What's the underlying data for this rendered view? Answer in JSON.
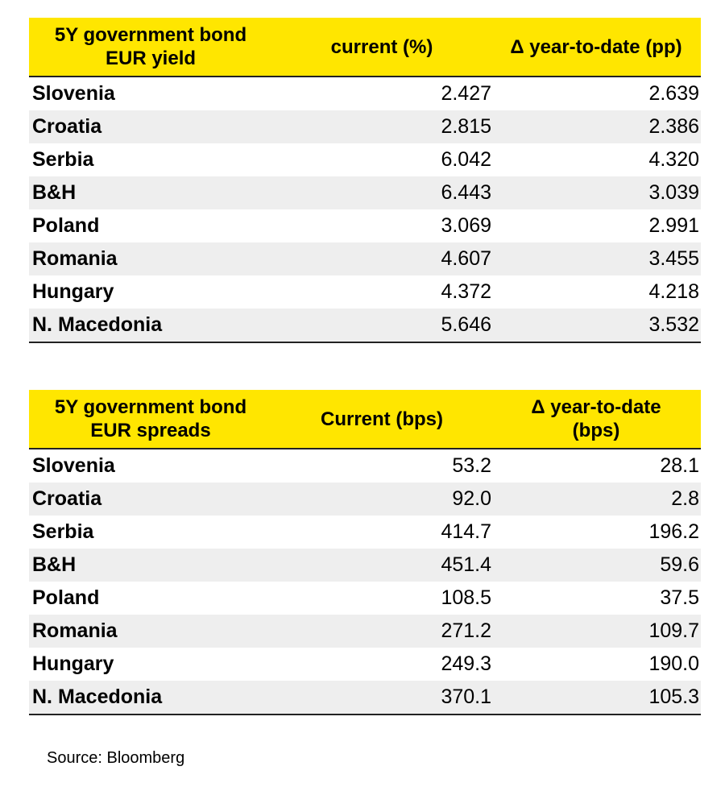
{
  "chart_data": [
    {
      "type": "table",
      "columns": [
        "5Y government bond EUR yield",
        "current (%)",
        "Δ year-to-date (pp)"
      ],
      "header_lines": [
        [
          "5Y government bond",
          "EUR yield"
        ],
        [
          "current (%)"
        ],
        [
          "Δ year-to-date (pp)"
        ]
      ],
      "rows": [
        [
          "Slovenia",
          "2.427",
          "2.639"
        ],
        [
          "Croatia",
          "2.815",
          "2.386"
        ],
        [
          "Serbia",
          "6.042",
          "4.320"
        ],
        [
          "B&H",
          "6.443",
          "3.039"
        ],
        [
          "Poland",
          "3.069",
          "2.991"
        ],
        [
          "Romania",
          "4.607",
          "3.455"
        ],
        [
          "Hungary",
          "4.372",
          "4.218"
        ],
        [
          "N. Macedonia",
          "5.646",
          "3.532"
        ]
      ]
    },
    {
      "type": "table",
      "columns": [
        "5Y government bond EUR spreads",
        "Current (bps)",
        "Δ year-to-date (bps)"
      ],
      "header_lines": [
        [
          "5Y government bond",
          "EUR spreads"
        ],
        [
          "Current (bps)"
        ],
        [
          "Δ year-to-date",
          "(bps)"
        ]
      ],
      "rows": [
        [
          "Slovenia",
          "53.2",
          "28.1"
        ],
        [
          "Croatia",
          "92.0",
          "2.8"
        ],
        [
          "Serbia",
          "414.7",
          "196.2"
        ],
        [
          "B&H",
          "451.4",
          "59.6"
        ],
        [
          "Poland",
          "108.5",
          "37.5"
        ],
        [
          "Romania",
          "271.2",
          "109.7"
        ],
        [
          "Hungary",
          "249.3",
          "190.0"
        ],
        [
          "N. Macedonia",
          "370.1",
          "105.3"
        ]
      ]
    }
  ],
  "colors": {
    "header_bg": "#ffe600",
    "stripe_bg": "#eeeeee",
    "rule": "#222222"
  },
  "footer": {
    "source": "Source: Bloomberg"
  }
}
